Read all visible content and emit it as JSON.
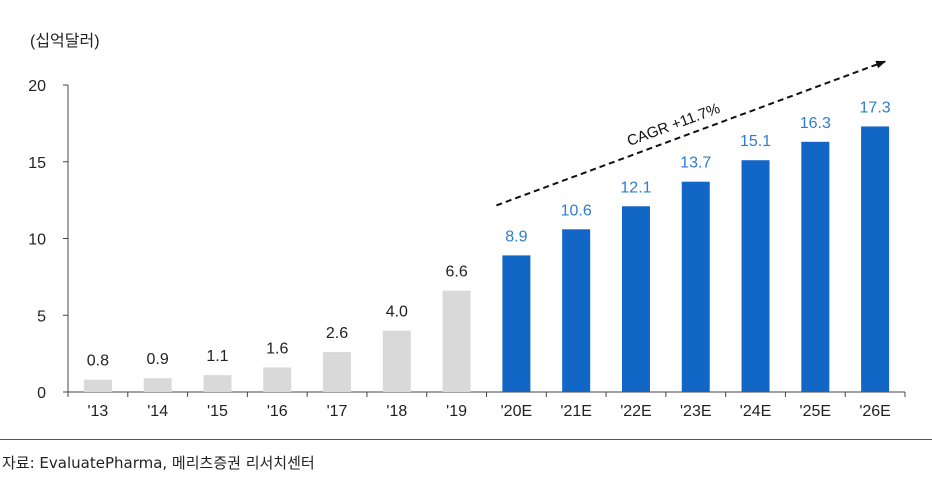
{
  "chart_data": {
    "type": "bar",
    "unit_label": "(십억달러)",
    "categories": [
      "'13",
      "'14",
      "'15",
      "'16",
      "'17",
      "'18",
      "'19",
      "'20E",
      "'21E",
      "'22E",
      "'23E",
      "'24E",
      "'25E",
      "'26E"
    ],
    "values": [
      0.8,
      0.9,
      1.1,
      1.6,
      2.6,
      4.0,
      6.6,
      8.9,
      10.6,
      12.1,
      13.7,
      15.1,
      16.3,
      17.3
    ],
    "value_labels": [
      "0.8",
      "0.9",
      "1.1",
      "1.6",
      "2.6",
      "4.0",
      "6.6",
      "8.9",
      "10.6",
      "12.1",
      "13.7",
      "15.1",
      "16.3",
      "17.3"
    ],
    "forecast_from_index": 7,
    "ylim": [
      0,
      20
    ],
    "yticks": [
      "0",
      "5",
      "10",
      "15",
      "20"
    ],
    "colors": {
      "actual": "#d9d9d9",
      "forecast": "#1266c6",
      "forecast_label": "#2e7bd0",
      "actual_label": "#222222"
    },
    "annotation": {
      "text": "CAGR +11.7%",
      "style": "dashed-arrow"
    }
  },
  "source": "자료: EvaluatePharma, 메리츠증권 리서치센터"
}
